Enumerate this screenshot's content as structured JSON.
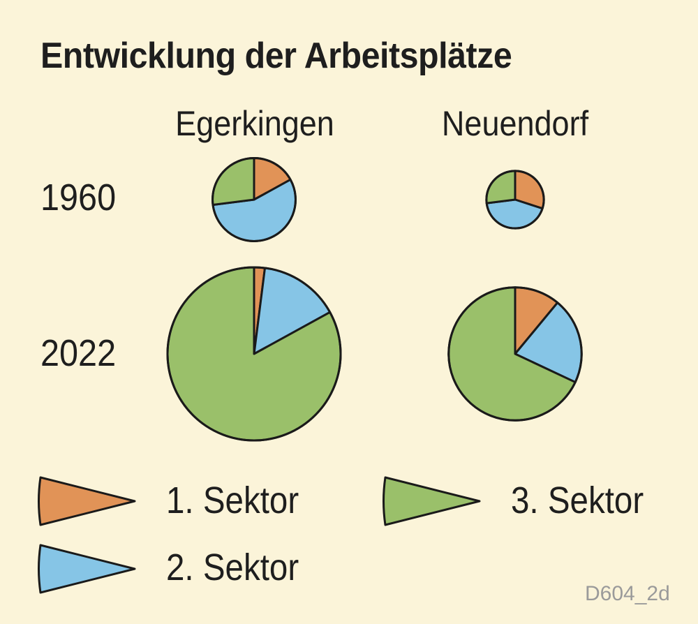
{
  "title": "Entwicklung der Arbeitsplätze",
  "image_code": "D604_2d",
  "colors": {
    "sector1": "#e19357",
    "sector2": "#86c5e6",
    "sector3": "#9ac06a",
    "outline": "#1a1a1a",
    "background": "#fbf4d9"
  },
  "chart_data": {
    "type": "pie",
    "title": "Entwicklung der Arbeitsplätze",
    "columns": [
      "Egerkingen",
      "Neuendorf"
    ],
    "rows": [
      "1960",
      "2022"
    ],
    "legend": [
      {
        "label": "1. Sektor",
        "color": "#e19357"
      },
      {
        "label": "2. Sektor",
        "color": "#86c5e6"
      },
      {
        "label": "3. Sektor",
        "color": "#9ac06a"
      }
    ],
    "legend_placement": "bottom",
    "pies": [
      {
        "place": "Egerkingen",
        "year": "1960",
        "relative_size": 0.23,
        "values": [
          17,
          56,
          27
        ]
      },
      {
        "place": "Neuendorf",
        "year": "1960",
        "relative_size": 0.11,
        "values": [
          30,
          43,
          27
        ]
      },
      {
        "place": "Egerkingen",
        "year": "2022",
        "relative_size": 1.0,
        "values": [
          2,
          15,
          83
        ]
      },
      {
        "place": "Neuendorf",
        "year": "2022",
        "relative_size": 0.59,
        "values": [
          11,
          21,
          68
        ]
      }
    ]
  }
}
